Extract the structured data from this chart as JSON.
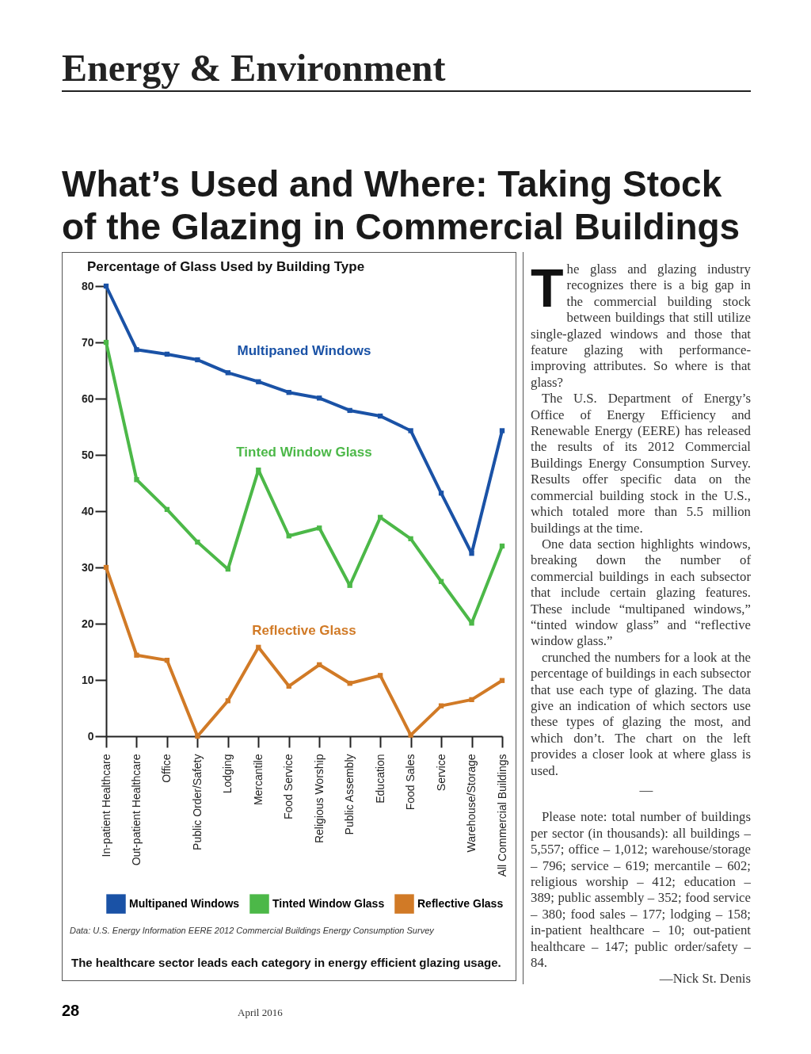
{
  "chart_data": {
    "type": "line",
    "title": "What’s Used and Where: Taking Stock of the Glazing in Commercial Buildings",
    "subtitle": "Percentage of Glass Used by Building Type",
    "categories": [
      "In-patient Healthcare",
      "Out-patient Healthcare",
      "Office",
      "Public Order/Safety",
      "Lodging",
      "Mercantile",
      "Food Service",
      "Religious Worship",
      "Public Assembly",
      "Education",
      "Food Sales",
      "Service",
      "Warehouse/Storage",
      "All Commercial Buildings"
    ],
    "series": [
      {
        "name": "Multipaned Windows",
        "color": "#1a52a6",
        "values": [
          80,
          68.7,
          67.9,
          66.9,
          64.6,
          63,
          61.1,
          60.1,
          57.9,
          56.9,
          54.3,
          43.2,
          32.5,
          54.3
        ]
      },
      {
        "name": "Tinted Window Glass",
        "color": "#4cb848",
        "values": [
          70,
          45.6,
          40.3,
          34.5,
          29.7,
          47.3,
          35.6,
          37,
          26.8,
          38.9,
          35.1,
          27.5,
          20.1,
          33.8
        ]
      },
      {
        "name": "Reflective Glass",
        "color": "#d17a26",
        "values": [
          30,
          14.4,
          13.5,
          0,
          6.3,
          15.8,
          8.9,
          12.7,
          9.4,
          10.8,
          0.2,
          5.4,
          6.5,
          9.9
        ]
      }
    ],
    "ylim": [
      0,
      80
    ],
    "yticks": [
      0,
      10,
      20,
      30,
      40,
      50,
      60,
      70,
      80
    ],
    "grid": false,
    "legend": "bottom",
    "marker": "square",
    "line_style": "solid",
    "annotations": [
      "Energy & Environment",
      "Data: U.S. Energy Information EERE 2012 Commercial Buildings Energy Consumption Survey",
      "The healthcare sector leads each category in energy efficient glazing usage.",
      "The glass and glazing industry recognizes there is a big gap in the commercial building stock between buildings that still utilize single-glazed windows and those that feature glazing with performance-improving attributes. So where is that glass?",
      "The U.S. Department of Energy’s Office of Energy Efficiency and Renewable Energy (EERE) has released the results of its 2012 Commercial Buildings Energy Consumption Survey. Results offer specific data on the commercial building stock in the U.S., which totaled more than 5.5 million buildings at the time.",
      "One data section highlights windows, breaking down the number of commercial buildings in each subsector that include certain glazing features. These include “multipaned windows,” “tinted window glass” and “reflective window glass.”",
      "crunched the numbers for a look at the percentage of buildings in each subsector that use each type of glazing. The data give an indication of which sectors use these types of glazing the most, and which don’t. The chart on the left provides a closer look at where glass is used.",
      "Please note: total number of buildings per sector (in thousands): all buildings – 5,557; office – 1,012; warehouse/storage – 796; service – 619; mercantile – 602; religious worship – 412; education – 389; public assembly – 352; food service – 380; food sales – 177; lodging – 158; in-patient healthcare – 10; out-patient healthcare – 147; public order/safety – 84.",
      "—Nick St. Denis",
      "28",
      "April 2016",
      "—"
    ]
  }
}
